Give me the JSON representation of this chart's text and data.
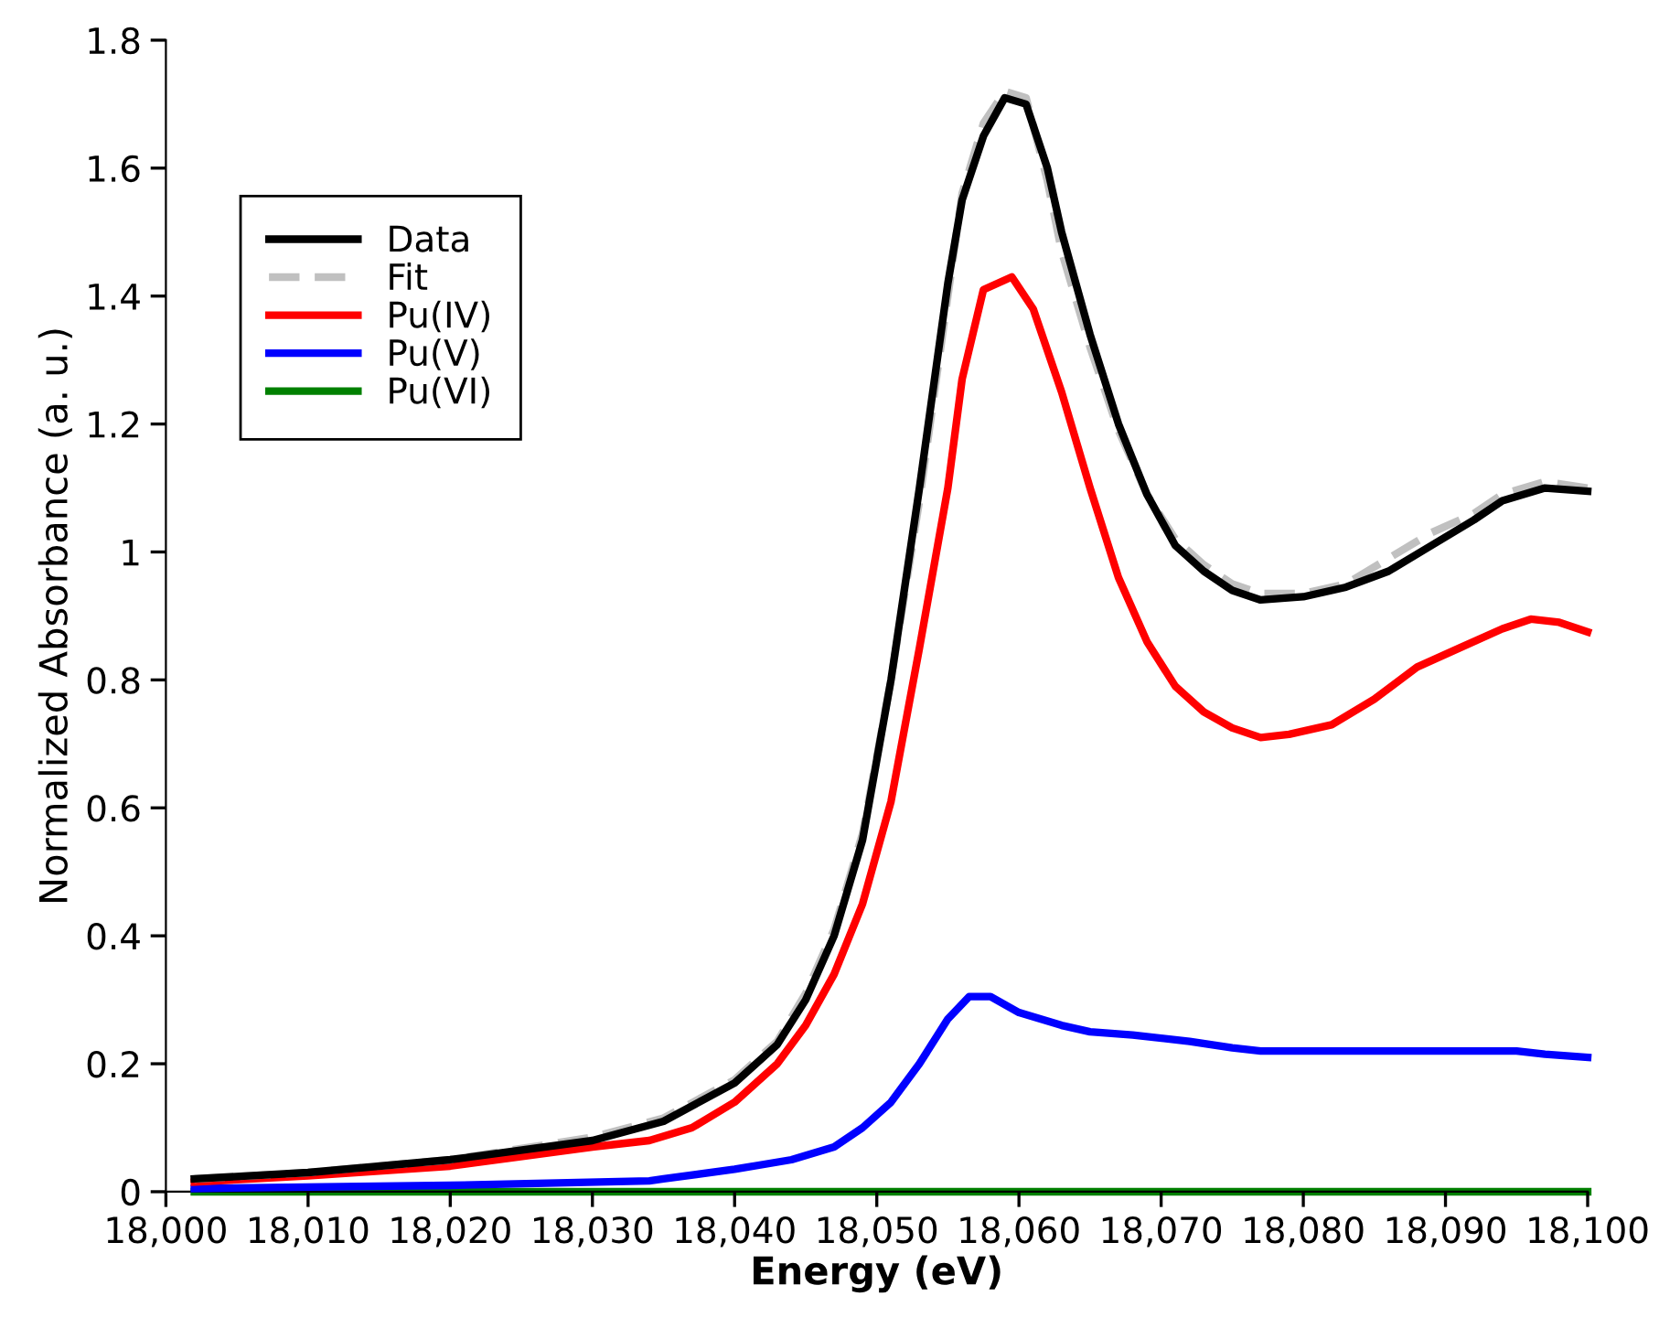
{
  "chart_data": {
    "type": "line",
    "xlabel": "Energy (eV)",
    "ylabel": "Normalized Absorbance (a. u.)",
    "xlim": [
      18000,
      18100
    ],
    "ylim": [
      0,
      1.8
    ],
    "xticks": [
      {
        "value": 18000,
        "label": "18,000"
      },
      {
        "value": 18010,
        "label": "18,010"
      },
      {
        "value": 18020,
        "label": "18,020"
      },
      {
        "value": 18030,
        "label": "18,030"
      },
      {
        "value": 18040,
        "label": "18,040"
      },
      {
        "value": 18050,
        "label": "18,050"
      },
      {
        "value": 18060,
        "label": "18,060"
      },
      {
        "value": 18070,
        "label": "18,070"
      },
      {
        "value": 18080,
        "label": "18,080"
      },
      {
        "value": 18090,
        "label": "18,090"
      },
      {
        "value": 18100,
        "label": "18,100"
      }
    ],
    "yticks": [
      0,
      0.2,
      0.4,
      0.6,
      0.8,
      1,
      1.2,
      1.4,
      1.6,
      1.8
    ],
    "grid": false,
    "legend": "top left",
    "marker": "none",
    "series": [
      {
        "name": "Data",
        "color": "#000000",
        "line_style": "solid",
        "x": [
          18002,
          18010,
          18020,
          18030,
          18035,
          18040,
          18043,
          18045,
          18047,
          18049,
          18051,
          18053,
          18055,
          18056,
          18057.5,
          18059,
          18060.5,
          18062,
          18063,
          18065,
          18067,
          18069,
          18071,
          18073,
          18075,
          18077,
          18080,
          18083,
          18086,
          18089,
          18092,
          18094,
          18097,
          18100
        ],
        "values": [
          0.02,
          0.03,
          0.05,
          0.08,
          0.11,
          0.17,
          0.23,
          0.3,
          0.4,
          0.55,
          0.8,
          1.1,
          1.42,
          1.55,
          1.65,
          1.71,
          1.7,
          1.6,
          1.5,
          1.34,
          1.2,
          1.09,
          1.01,
          0.97,
          0.94,
          0.925,
          0.93,
          0.945,
          0.97,
          1.01,
          1.05,
          1.08,
          1.1,
          1.095
        ]
      },
      {
        "name": "Fit",
        "color": "#c0c0c0",
        "line_style": "dashed",
        "x": [
          18002,
          18010,
          18020,
          18030,
          18035,
          18040,
          18043,
          18045,
          18047,
          18049,
          18051,
          18053,
          18055,
          18056,
          18057.5,
          18059,
          18060.5,
          18062,
          18063,
          18065,
          18067,
          18069,
          18071,
          18073,
          18075,
          18077,
          18080,
          18083,
          18086,
          18089,
          18092,
          18094,
          18097,
          18100
        ],
        "values": [
          0.02,
          0.03,
          0.05,
          0.085,
          0.115,
          0.175,
          0.235,
          0.31,
          0.41,
          0.56,
          0.8,
          1.08,
          1.4,
          1.56,
          1.67,
          1.72,
          1.71,
          1.58,
          1.47,
          1.32,
          1.19,
          1.09,
          1.02,
          0.98,
          0.95,
          0.935,
          0.935,
          0.95,
          0.99,
          1.03,
          1.06,
          1.09,
          1.11,
          1.1
        ]
      },
      {
        "name": "Pu(IV)",
        "color": "#ff0000",
        "line_style": "solid",
        "x": [
          18002,
          18010,
          18020,
          18030,
          18034,
          18037,
          18040,
          18043,
          18045,
          18047,
          18049,
          18051,
          18053,
          18055,
          18056,
          18057.5,
          18059.5,
          18061,
          18063,
          18065,
          18067,
          18069,
          18071,
          18073,
          18075,
          18077,
          18079,
          18082,
          18085,
          18088,
          18091,
          18094,
          18096,
          18098,
          18100
        ],
        "values": [
          0.015,
          0.025,
          0.04,
          0.07,
          0.08,
          0.1,
          0.14,
          0.2,
          0.26,
          0.34,
          0.45,
          0.61,
          0.85,
          1.1,
          1.27,
          1.41,
          1.43,
          1.38,
          1.25,
          1.1,
          0.96,
          0.86,
          0.79,
          0.75,
          0.725,
          0.71,
          0.715,
          0.73,
          0.77,
          0.82,
          0.85,
          0.88,
          0.895,
          0.89,
          0.875
        ]
      },
      {
        "name": "Pu(V)",
        "color": "#0000ff",
        "line_style": "solid",
        "x": [
          18002,
          18020,
          18034,
          18035,
          18040,
          18044,
          18047,
          18049,
          18051,
          18053,
          18055,
          18056.5,
          18058,
          18060,
          18063,
          18065,
          18068,
          18072,
          18075,
          18077,
          18085,
          18095,
          18097,
          18100
        ],
        "values": [
          0.005,
          0.01,
          0.017,
          0.02,
          0.035,
          0.05,
          0.07,
          0.1,
          0.14,
          0.2,
          0.27,
          0.305,
          0.305,
          0.28,
          0.26,
          0.25,
          0.245,
          0.235,
          0.225,
          0.22,
          0.22,
          0.22,
          0.215,
          0.21
        ]
      },
      {
        "name": "Pu(VI)",
        "color": "#008000",
        "line_style": "solid",
        "x": [
          18002,
          18100
        ],
        "values": [
          0,
          0
        ]
      }
    ]
  }
}
